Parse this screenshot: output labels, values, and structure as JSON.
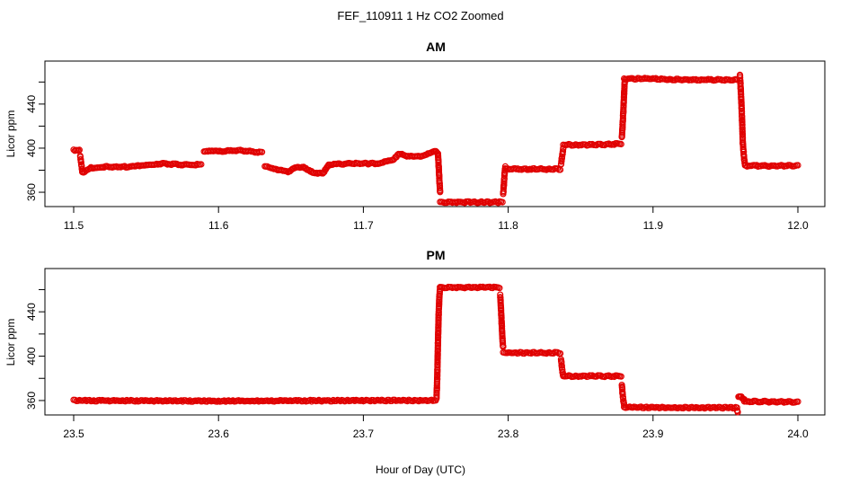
{
  "title": "FEF_110911  1 Hz CO2 Zoomed",
  "x_axis_label": "Hour of Day (UTC)",
  "colors": {
    "points": "#e00000",
    "axes": "#000000"
  },
  "chart_data": [
    {
      "type": "scatter",
      "title": "AM",
      "xlabel": "Hour of Day (UTC)",
      "ylabel": "Licor ppm",
      "xlim": [
        11.5,
        12.0
      ],
      "ylim": [
        347,
        479
      ],
      "x_ticks": [
        "11.5",
        "11.6",
        "11.7",
        "11.8",
        "11.9",
        "12.0"
      ],
      "y_ticks": [
        "360",
        "400",
        "440"
      ],
      "grid": false,
      "series": [
        {
          "marker": "open-circle",
          "segments": [
            {
              "x": [
                11.5,
                11.504
              ],
              "y": [
                398,
                398
              ]
            },
            {
              "x": [
                11.5045,
                11.506
              ],
              "y": [
                393,
                378
              ]
            },
            {
              "x": [
                11.506,
                11.512,
                11.52,
                11.54,
                11.55,
                11.56,
                11.575,
                11.588
              ],
              "y": [
                378,
                382,
                383,
                383,
                385,
                386,
                385,
                385
              ]
            },
            {
              "x": [
                11.59,
                11.6,
                11.615,
                11.63
              ],
              "y": [
                397,
                397,
                398,
                396
              ]
            },
            {
              "x": [
                11.632,
                11.64,
                11.648,
                11.652,
                11.658,
                11.665,
                11.672,
                11.676
              ],
              "y": [
                384,
                381,
                378,
                382,
                383,
                378,
                377,
                385
              ]
            },
            {
              "x": [
                11.676,
                11.69,
                11.71,
                11.72,
                11.725,
                11.73,
                11.74,
                11.75
              ],
              "y": [
                385,
                386,
                386,
                389,
                395,
                393,
                393,
                397
              ]
            },
            {
              "x": [
                11.7505,
                11.7515,
                11.752,
                11.7525,
                11.753
              ],
              "y": [
                397,
                395,
                384,
                371,
                360
              ]
            },
            {
              "x": [
                11.753,
                11.77,
                11.796
              ],
              "y": [
                351,
                351,
                351
              ]
            },
            {
              "x": [
                11.7965,
                11.797,
                11.7975,
                11.798
              ],
              "y": [
                358,
                367,
                377,
                383
              ]
            },
            {
              "x": [
                11.798,
                11.815,
                11.836
              ],
              "y": [
                381,
                381,
                381
              ]
            },
            {
              "x": [
                11.8365,
                11.837,
                11.8375,
                11.838
              ],
              "y": [
                385,
                390,
                395,
                400
              ]
            },
            {
              "x": [
                11.838,
                11.86,
                11.878
              ],
              "y": [
                403,
                403,
                404
              ]
            },
            {
              "x": [
                11.8785,
                11.879,
                11.8795,
                11.88,
                11.8805
              ],
              "y": [
                410,
                421,
                434,
                449,
                462
              ]
            },
            {
              "x": [
                11.88,
                11.9,
                11.92,
                11.94,
                11.958
              ],
              "y": [
                463,
                463,
                462,
                462,
                462
              ]
            },
            {
              "x": [
                11.96,
                11.9605,
                11.961,
                11.9615,
                11.962,
                11.9625,
                11.963,
                11.9635
              ],
              "y": [
                466,
                455,
                441,
                425,
                405,
                396,
                389,
                385
              ]
            },
            {
              "x": [
                11.964,
                11.98,
                12.0
              ],
              "y": [
                384,
                384,
                384
              ]
            }
          ]
        }
      ]
    },
    {
      "type": "scatter",
      "title": "PM",
      "xlabel": "Hour of Day (UTC)",
      "ylabel": "Licor ppm",
      "xlim": [
        23.5,
        24.0
      ],
      "ylim": [
        347,
        479
      ],
      "x_ticks": [
        "23.5",
        "23.6",
        "23.7",
        "23.8",
        "23.9",
        "24.0"
      ],
      "y_ticks": [
        "360",
        "400",
        "440"
      ],
      "grid": false,
      "series": [
        {
          "marker": "open-circle",
          "segments": [
            {
              "x": [
                23.5,
                23.6,
                23.7,
                23.75
              ],
              "y": [
                360,
                359.5,
                360,
                360
              ]
            },
            {
              "x": [
                23.7505,
                23.751,
                23.7515,
                23.752,
                23.7525,
                23.753
              ],
              "y": [
                362,
                380,
                412,
                438,
                454,
                462
              ]
            },
            {
              "x": [
                23.753,
                23.77,
                23.794
              ],
              "y": [
                462,
                462,
                462
              ]
            },
            {
              "x": [
                23.7945,
                23.795,
                23.7955,
                23.796,
                23.7965
              ],
              "y": [
                455,
                443,
                430,
                416,
                408
              ]
            },
            {
              "x": [
                23.7965,
                23.815,
                23.836
              ],
              "y": [
                403,
                403,
                403
              ]
            },
            {
              "x": [
                23.8365,
                23.837,
                23.8375,
                23.838
              ],
              "y": [
                397,
                391,
                386,
                382
              ]
            },
            {
              "x": [
                23.838,
                23.86,
                23.878
              ],
              "y": [
                382,
                382,
                382
              ]
            },
            {
              "x": [
                23.8785,
                23.879,
                23.8795,
                23.88
              ],
              "y": [
                374,
                366,
                360,
                356
              ]
            },
            {
              "x": [
                23.88,
                23.92,
                23.958
              ],
              "y": [
                354,
                353.5,
                353.5
              ]
            },
            {
              "x": [
                23.958,
                23.9585
              ],
              "y": [
                351,
                349
              ]
            },
            {
              "x": [
                23.959,
                23.961,
                23.963
              ],
              "y": [
                364,
                363,
                361
              ]
            },
            {
              "x": [
                23.963,
                23.98,
                24.0
              ],
              "y": [
                359,
                359,
                358.5
              ]
            }
          ]
        }
      ]
    }
  ]
}
